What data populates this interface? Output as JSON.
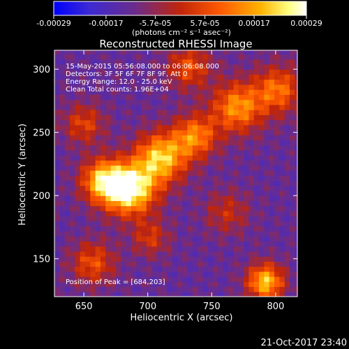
{
  "colorbar": {
    "ticks": [
      "-0.00029",
      "-0.00017",
      "-5.7e-05",
      "5.7e-05",
      "0.00017",
      "0.00029"
    ],
    "tick_values": [
      -0.00029,
      -0.00017,
      -5.7e-05,
      5.7e-05,
      0.00017,
      0.00029
    ],
    "range": [
      -0.00029,
      0.00029
    ],
    "unit_label": "(photons cm⁻² s⁻¹ asec⁻²)",
    "colors": [
      "#0000ff",
      "#3c2ad2",
      "#6a2c8c",
      "#c0250a",
      "#ff5a00",
      "#ffb400",
      "#ffff82",
      "#ffffff"
    ]
  },
  "chart_data": {
    "type": "heatmap",
    "title": "Reconstructed RHESSI Image",
    "xlabel": "Heliocentric X (arcsec)",
    "ylabel": "Heliocentric Y (arcsec)",
    "xlim": [
      627,
      817
    ],
    "ylim": [
      120,
      315
    ],
    "xticks": [
      650,
      700,
      750,
      800
    ],
    "yticks": [
      150,
      200,
      250,
      300
    ],
    "xtick_labels": [
      "650",
      "700",
      "750",
      "800"
    ],
    "ytick_labels": [
      "150",
      "200",
      "250",
      "300"
    ],
    "annotations": [
      "15-May-2015 05:56:08.000 to 06:06:08.000",
      "Detectors: 3F 5F 6F 7F 8F 9F, Att 0",
      "Energy Range: 12.0 - 25.0 keV",
      "Clean     Total counts: 1.96E+04"
    ],
    "peak_label": "Position of Peak = [684,203]",
    "peak": {
      "x": 684,
      "y": 203
    },
    "sources": [
      {
        "x": 684,
        "y": 203,
        "amp": 1.0,
        "sigma": 14
      },
      {
        "x": 663,
        "y": 210,
        "amp": 0.75,
        "sigma": 12
      },
      {
        "x": 708,
        "y": 228,
        "amp": 0.8,
        "sigma": 14
      },
      {
        "x": 735,
        "y": 245,
        "amp": 0.6,
        "sigma": 12
      },
      {
        "x": 768,
        "y": 268,
        "amp": 0.65,
        "sigma": 14
      },
      {
        "x": 800,
        "y": 282,
        "amp": 0.55,
        "sigma": 13
      },
      {
        "x": 730,
        "y": 300,
        "amp": 0.45,
        "sigma": 12
      },
      {
        "x": 790,
        "y": 130,
        "amp": 0.8,
        "sigma": 10
      },
      {
        "x": 655,
        "y": 145,
        "amp": 0.45,
        "sigma": 12
      },
      {
        "x": 648,
        "y": 255,
        "amp": 0.4,
        "sigma": 11
      },
      {
        "x": 700,
        "y": 165,
        "amp": 0.35,
        "sigma": 10
      },
      {
        "x": 760,
        "y": 185,
        "amp": 0.3,
        "sigma": 12
      }
    ]
  },
  "footer": {
    "date": "21-Oct-2017 23:40"
  }
}
